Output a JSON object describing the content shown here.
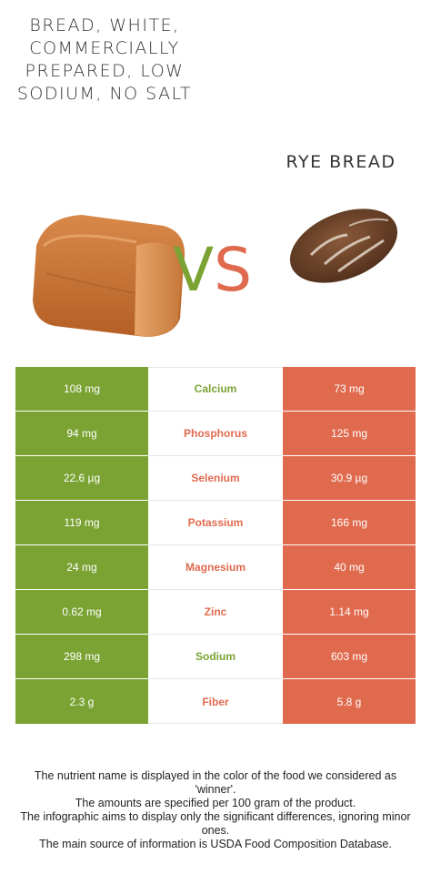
{
  "food_left": {
    "name": "Bread, white, commercially prepared, low sodium, no salt",
    "color": "#7aa334",
    "image_icon": "white-bread-loaf"
  },
  "food_right": {
    "name": "Rye bread",
    "color": "#e06a4e",
    "image_icon": "rye-bread-loaf"
  },
  "vs": {
    "v": "V",
    "s": "S"
  },
  "colors": {
    "left_win": "#7aa334",
    "right_win": "#e06a4e"
  },
  "nutrients": [
    {
      "name": "Calcium",
      "left": "108 mg",
      "right": "73 mg",
      "winner": "left"
    },
    {
      "name": "Phosphorus",
      "left": "94 mg",
      "right": "125 mg",
      "winner": "right"
    },
    {
      "name": "Selenium",
      "left": "22.6 µg",
      "right": "30.9 µg",
      "winner": "right"
    },
    {
      "name": "Potassium",
      "left": "119 mg",
      "right": "166 mg",
      "winner": "right"
    },
    {
      "name": "Magnesium",
      "left": "24 mg",
      "right": "40 mg",
      "winner": "right"
    },
    {
      "name": "Zinc",
      "left": "0.62 mg",
      "right": "1.14 mg",
      "winner": "right"
    },
    {
      "name": "Sodium",
      "left": "298 mg",
      "right": "603 mg",
      "winner": "left"
    },
    {
      "name": "Fiber",
      "left": "2.3 g",
      "right": "5.8 g",
      "winner": "right"
    }
  ],
  "footnote": [
    "The nutrient name is displayed in the color of the food we considered as 'winner'.",
    "The amounts are specified per 100 gram of the product.",
    "The infographic aims to display only the significant differences, ignoring minor ones.",
    "The main source of information is USDA Food Composition Database."
  ]
}
